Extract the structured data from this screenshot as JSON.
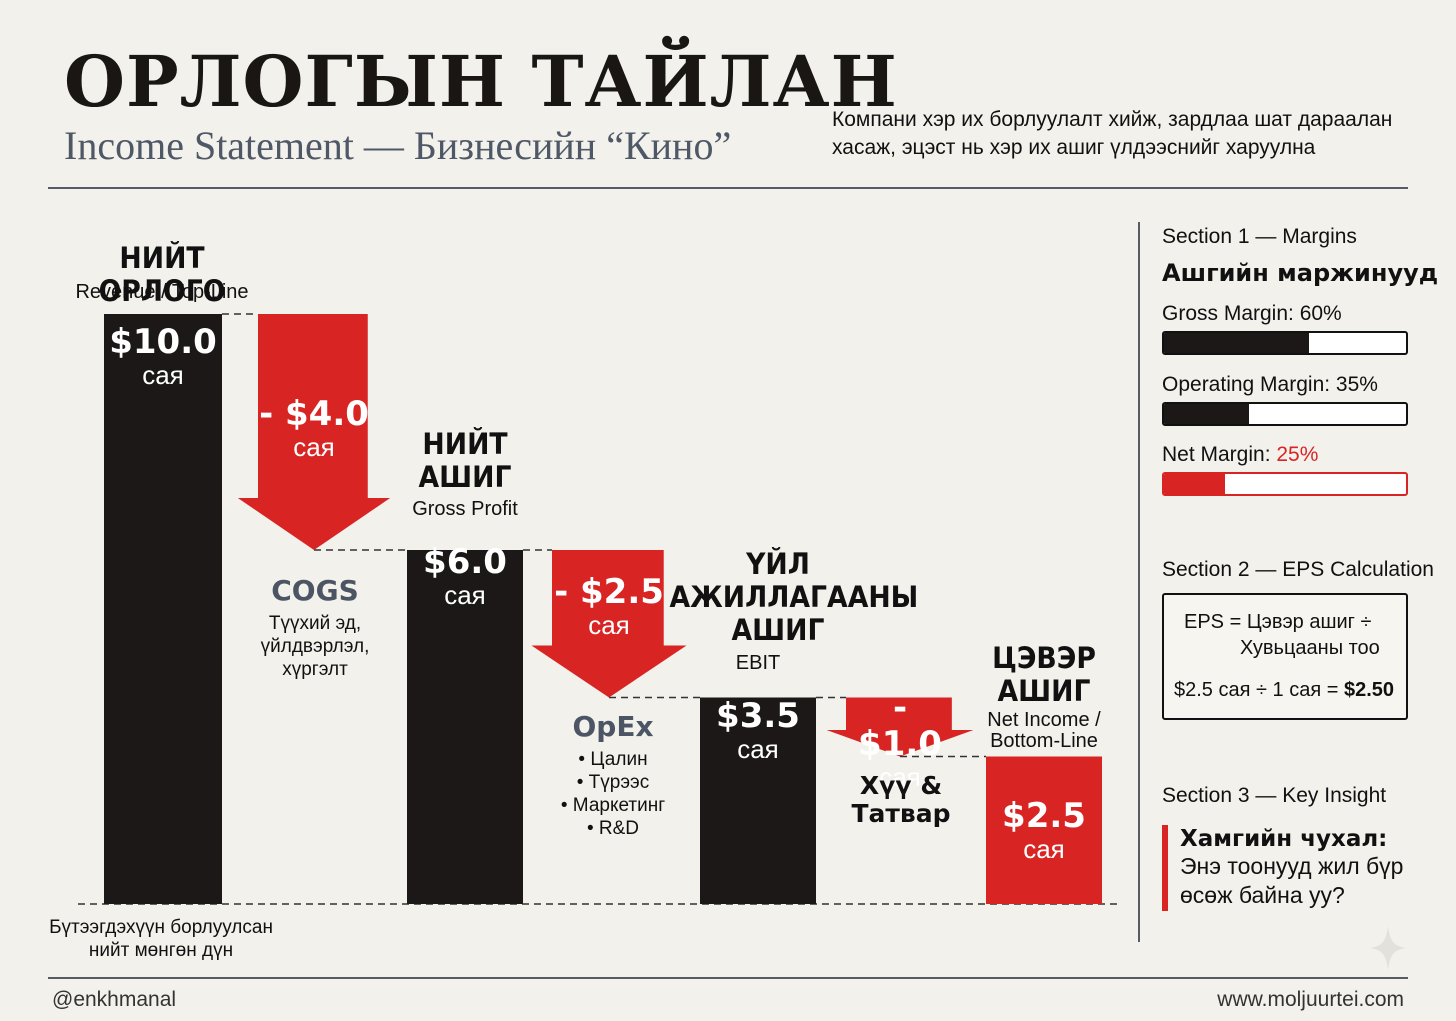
{
  "header": {
    "title": "ОРЛОГЫН ТАЙЛАН",
    "subtitle": "Income Statement — Бизнесийн “Кино”",
    "intro_line1": "Компани хэр их борлуулалт хийж, зардлаа шат дараалан",
    "intro_line2": "хасаж, эцэст нь хэр их ашиг үлдээснийг харуулна"
  },
  "chart_data": {
    "type": "bar",
    "subtype": "waterfall",
    "unit": "сая",
    "steps": [
      {
        "kind": "total",
        "name": "НИЙТ ОРЛОГО",
        "sub": "Revenue / Top-Line",
        "value": 10.0,
        "label": "$10.0"
      },
      {
        "kind": "decrease",
        "name": "COGS",
        "value": -4.0,
        "label": "- $4.0",
        "desc": [
          "Түүхий эд,",
          "үйлдвэрлэл,",
          "хүргэлт"
        ]
      },
      {
        "kind": "total",
        "name": "НИЙТ АШИГ",
        "name_lines": [
          "НИЙТ",
          "АШИГ"
        ],
        "sub": "Gross Profit",
        "value": 6.0,
        "label": "$6.0"
      },
      {
        "kind": "decrease",
        "name": "OpEx",
        "value": -2.5,
        "label": "- $2.5",
        "desc": [
          "• Цалин",
          "• Түрээс",
          "• Маркетинг",
          "• R&D"
        ]
      },
      {
        "kind": "total",
        "name": "ҮЙЛ АЖИЛЛАГААНЫ АШИГ",
        "name_lines": [
          "ҮЙЛ",
          "АЖИЛЛАГААНЫ",
          "АШИГ"
        ],
        "sub": "EBIT",
        "value": 3.5,
        "label": "$3.5"
      },
      {
        "kind": "decrease",
        "name": "Хүү & Татвар",
        "name_lines": [
          "Хүү &",
          "Татвар"
        ],
        "value": -1.0,
        "label": "- $1.0"
      },
      {
        "kind": "total",
        "name": "ЦЭВЭР АШИГ",
        "name_lines": [
          "ЦЭВЭР",
          "АШИГ"
        ],
        "sub_lines": [
          "Net Income /",
          "Bottom-Line"
        ],
        "value": 2.5,
        "label": "$2.5",
        "highlight": true
      }
    ],
    "ylim": [
      0,
      10
    ],
    "baseline_note": [
      "Бүтээгдэхүүн борлуулсан",
      "нийт мөнгөн дүн"
    ],
    "colors": {
      "total": "#1c1818",
      "decrease": "#d92424",
      "highlight": "#d92424"
    }
  },
  "sidebar": {
    "section1": {
      "heading": "Section 1 — Margins",
      "title": "Ашгийн маржинууд",
      "margins": [
        {
          "label": "Gross Margin: ",
          "value": "60%",
          "fraction": 0.6,
          "color": "#1c1818",
          "red": false
        },
        {
          "label": "Operating Margin: ",
          "value": "35%",
          "fraction": 0.35,
          "color": "#1c1818",
          "red": false
        },
        {
          "label": "Net Margin: ",
          "value": "25%",
          "fraction": 0.25,
          "color": "#d92424",
          "red": true
        }
      ]
    },
    "section2": {
      "heading": "Section 2 — EPS Calculation",
      "formula_line1": "EPS = Цэвэр ашиг ÷",
      "formula_line2": "Хувьцааны тоо",
      "calc_prefix": "$2.5 сая ÷ 1 сая = ",
      "calc_result": "$2.50"
    },
    "section3": {
      "heading": "Section 3 — Key Insight",
      "title": "Хамгийн чухал:",
      "text_line1": "Энэ тоонууд жил бүр",
      "text_line2": "өсөж байна уу?"
    }
  },
  "footer": {
    "handle": "@enkhmanal",
    "website": "www.moljuurtei.com"
  }
}
